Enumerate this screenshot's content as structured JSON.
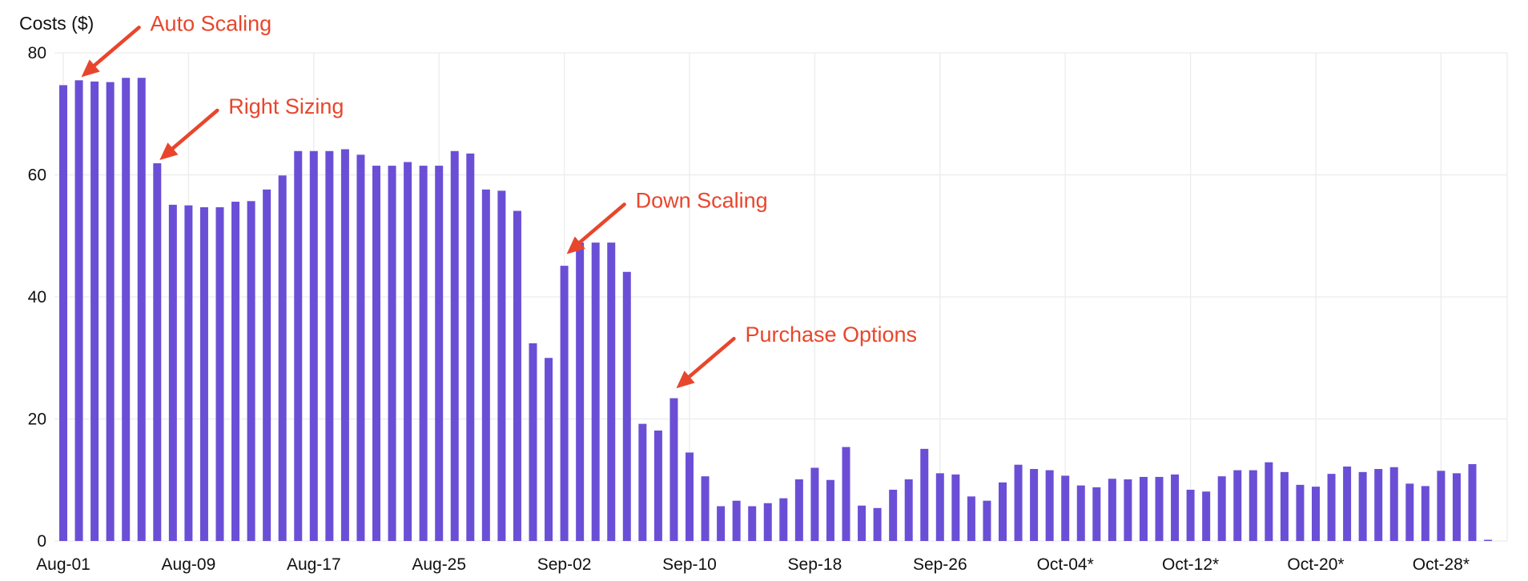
{
  "chart_data": {
    "type": "bar",
    "ylabel": "Costs ($)",
    "ylim": [
      0,
      80
    ],
    "yticks": [
      0,
      20,
      40,
      60,
      80
    ],
    "grid": true,
    "bar_color": "#6a4fd6",
    "annotation_color": "#e8462c",
    "x_tick_labels": [
      "Aug-01",
      "Aug-09",
      "Aug-17",
      "Aug-25",
      "Sep-02",
      "Sep-10",
      "Sep-18",
      "Sep-26",
      "Oct-04*",
      "Oct-12*",
      "Oct-20*",
      "Oct-28*"
    ],
    "start_date": "Aug-01",
    "series": [
      {
        "values": [
          74.7,
          75.5,
          75.3,
          75.2,
          75.9,
          75.9,
          61.9,
          55.1,
          55.0,
          54.7,
          54.7,
          55.6,
          55.7,
          57.6,
          59.9,
          63.9,
          63.9,
          63.9,
          64.2,
          63.3,
          61.5,
          61.5,
          62.1,
          61.5,
          61.5,
          63.9,
          63.5,
          57.6,
          57.4,
          54.1,
          32.4,
          30.0,
          45.1,
          48.9,
          48.9,
          48.9,
          44.1,
          19.2,
          18.1,
          23.4,
          14.5,
          10.6,
          5.7,
          6.6,
          5.7,
          6.2,
          7.0,
          10.1,
          12.0,
          10.0,
          15.4,
          5.8,
          5.4,
          8.4,
          10.1,
          15.1,
          11.1,
          10.9,
          7.3,
          6.6,
          9.6,
          12.5,
          11.8,
          11.6,
          10.7,
          9.1,
          8.8,
          10.2,
          10.1,
          10.5,
          10.5,
          10.9,
          8.4,
          8.1,
          10.6,
          11.6,
          11.6,
          12.9,
          11.3,
          9.2,
          8.9,
          11.0,
          12.2,
          11.3,
          11.8,
          12.1,
          9.4,
          9.0,
          11.5,
          11.1,
          12.6,
          0.2
        ]
      }
    ],
    "annotations": [
      {
        "text": "Auto Scaling",
        "date": "Aug-02",
        "value": 75.5
      },
      {
        "text": "Right Sizing",
        "date": "Aug-07",
        "value": 61.9
      },
      {
        "text": "Down Scaling",
        "date": "Sep-02",
        "value": 46.5
      },
      {
        "text": "Purchase Options",
        "date": "Sep-09",
        "value": 24.5
      }
    ]
  }
}
